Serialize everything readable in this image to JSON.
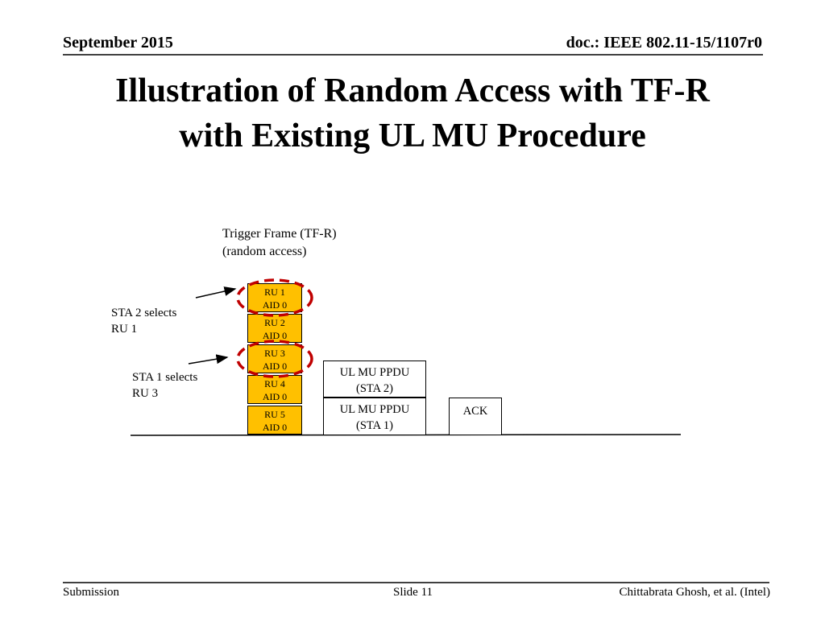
{
  "header": {
    "date": "September 2015",
    "doc": "doc.: IEEE 802.11-15/1107r0"
  },
  "title": {
    "line1": "Illustration of Random Access with TF-R",
    "line2": "with Existing UL MU Procedure"
  },
  "diagram": {
    "trigger_label": {
      "line1": "Trigger Frame (TF-R)",
      "line2": "(random access)"
    },
    "sta2_note": {
      "line1": "STA 2 selects",
      "line2": "RU 1"
    },
    "sta1_note": {
      "line1": "STA 1 selects",
      "line2": "RU 3"
    },
    "resource_units": [
      {
        "ru": "RU 1",
        "aid": "AID 0"
      },
      {
        "ru": "RU 2",
        "aid": "AID 0"
      },
      {
        "ru": "RU 3",
        "aid": "AID 0"
      },
      {
        "ru": "RU 4",
        "aid": "AID 0"
      },
      {
        "ru": "RU 5",
        "aid": "AID 0"
      }
    ],
    "ppdu_sta2": {
      "line1": "UL MU PPDU",
      "line2": "(STA 2)"
    },
    "ppdu_sta1": {
      "line1": "UL MU PPDU",
      "line2": "(STA 1)"
    },
    "ack": "ACK",
    "colors": {
      "ru_fill": "#ffc000",
      "highlight": "#c00000"
    }
  },
  "footer": {
    "left": "Submission",
    "center": "Slide 11",
    "right": "Chittabrata Ghosh, et al. (Intel)"
  }
}
